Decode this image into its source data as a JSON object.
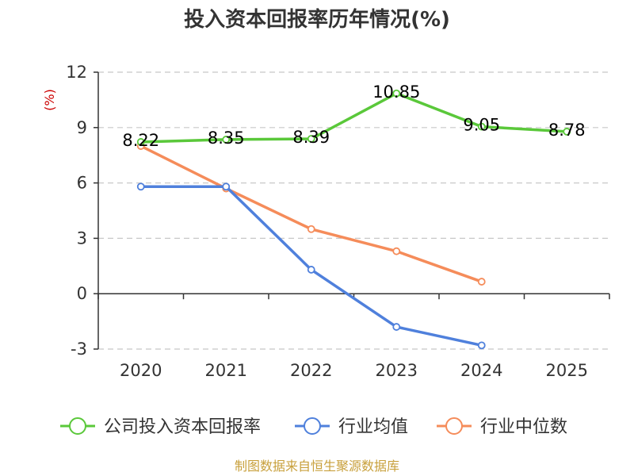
{
  "chart_data": {
    "type": "line",
    "title": "投入资本回报率历年情况(%)",
    "unit_label": "(%)",
    "categories": [
      "2020",
      "2021",
      "2022",
      "2023",
      "2024",
      "2025"
    ],
    "ylim": [
      -3,
      12
    ],
    "yticks": [
      -3,
      0,
      3,
      6,
      9,
      12
    ],
    "grid": true,
    "legend_position": "bottom",
    "series": [
      {
        "name": "公司投入资本回报率",
        "color": "#5ac83a",
        "values": [
          8.22,
          8.35,
          8.39,
          10.85,
          9.05,
          8.78
        ],
        "labels": [
          "8.22",
          "8.35",
          "8.39",
          "10.85",
          "9.05",
          "8.78"
        ]
      },
      {
        "name": "行业均值",
        "color": "#4f80dc",
        "values": [
          5.8,
          5.8,
          1.3,
          -1.8,
          -2.8,
          null
        ]
      },
      {
        "name": "行业中位数",
        "color": "#f58c5a",
        "values": [
          8.0,
          5.7,
          3.5,
          2.3,
          0.65,
          null
        ]
      }
    ]
  },
  "source": "制图数据来自恒生聚源数据库"
}
